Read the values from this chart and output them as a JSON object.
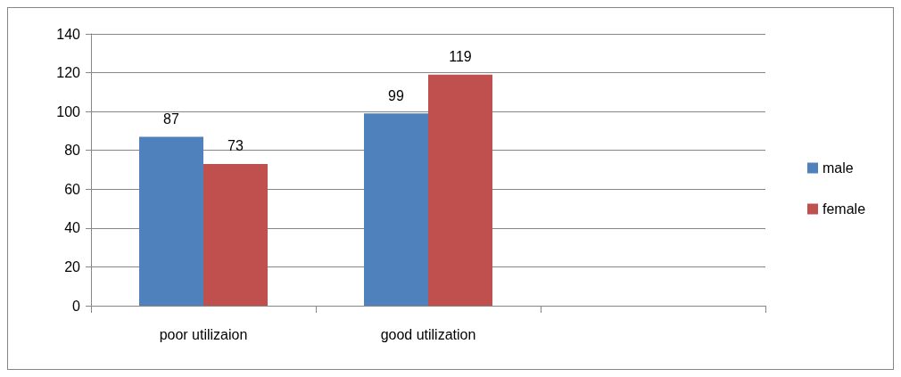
{
  "chart_data": {
    "type": "bar",
    "categories": [
      "poor utilizaion",
      "good utilization",
      null
    ],
    "series": [
      {
        "name": "male",
        "color": "#4f81bd",
        "values": [
          87,
          99,
          null
        ]
      },
      {
        "name": "female",
        "color": "#c0504d",
        "values": [
          73,
          119,
          null
        ]
      }
    ],
    "ylim": [
      0,
      140
    ],
    "yticks": [
      0,
      20,
      40,
      60,
      80,
      100,
      120,
      140
    ],
    "grid": "y",
    "legend": "right",
    "data_labels": true
  }
}
